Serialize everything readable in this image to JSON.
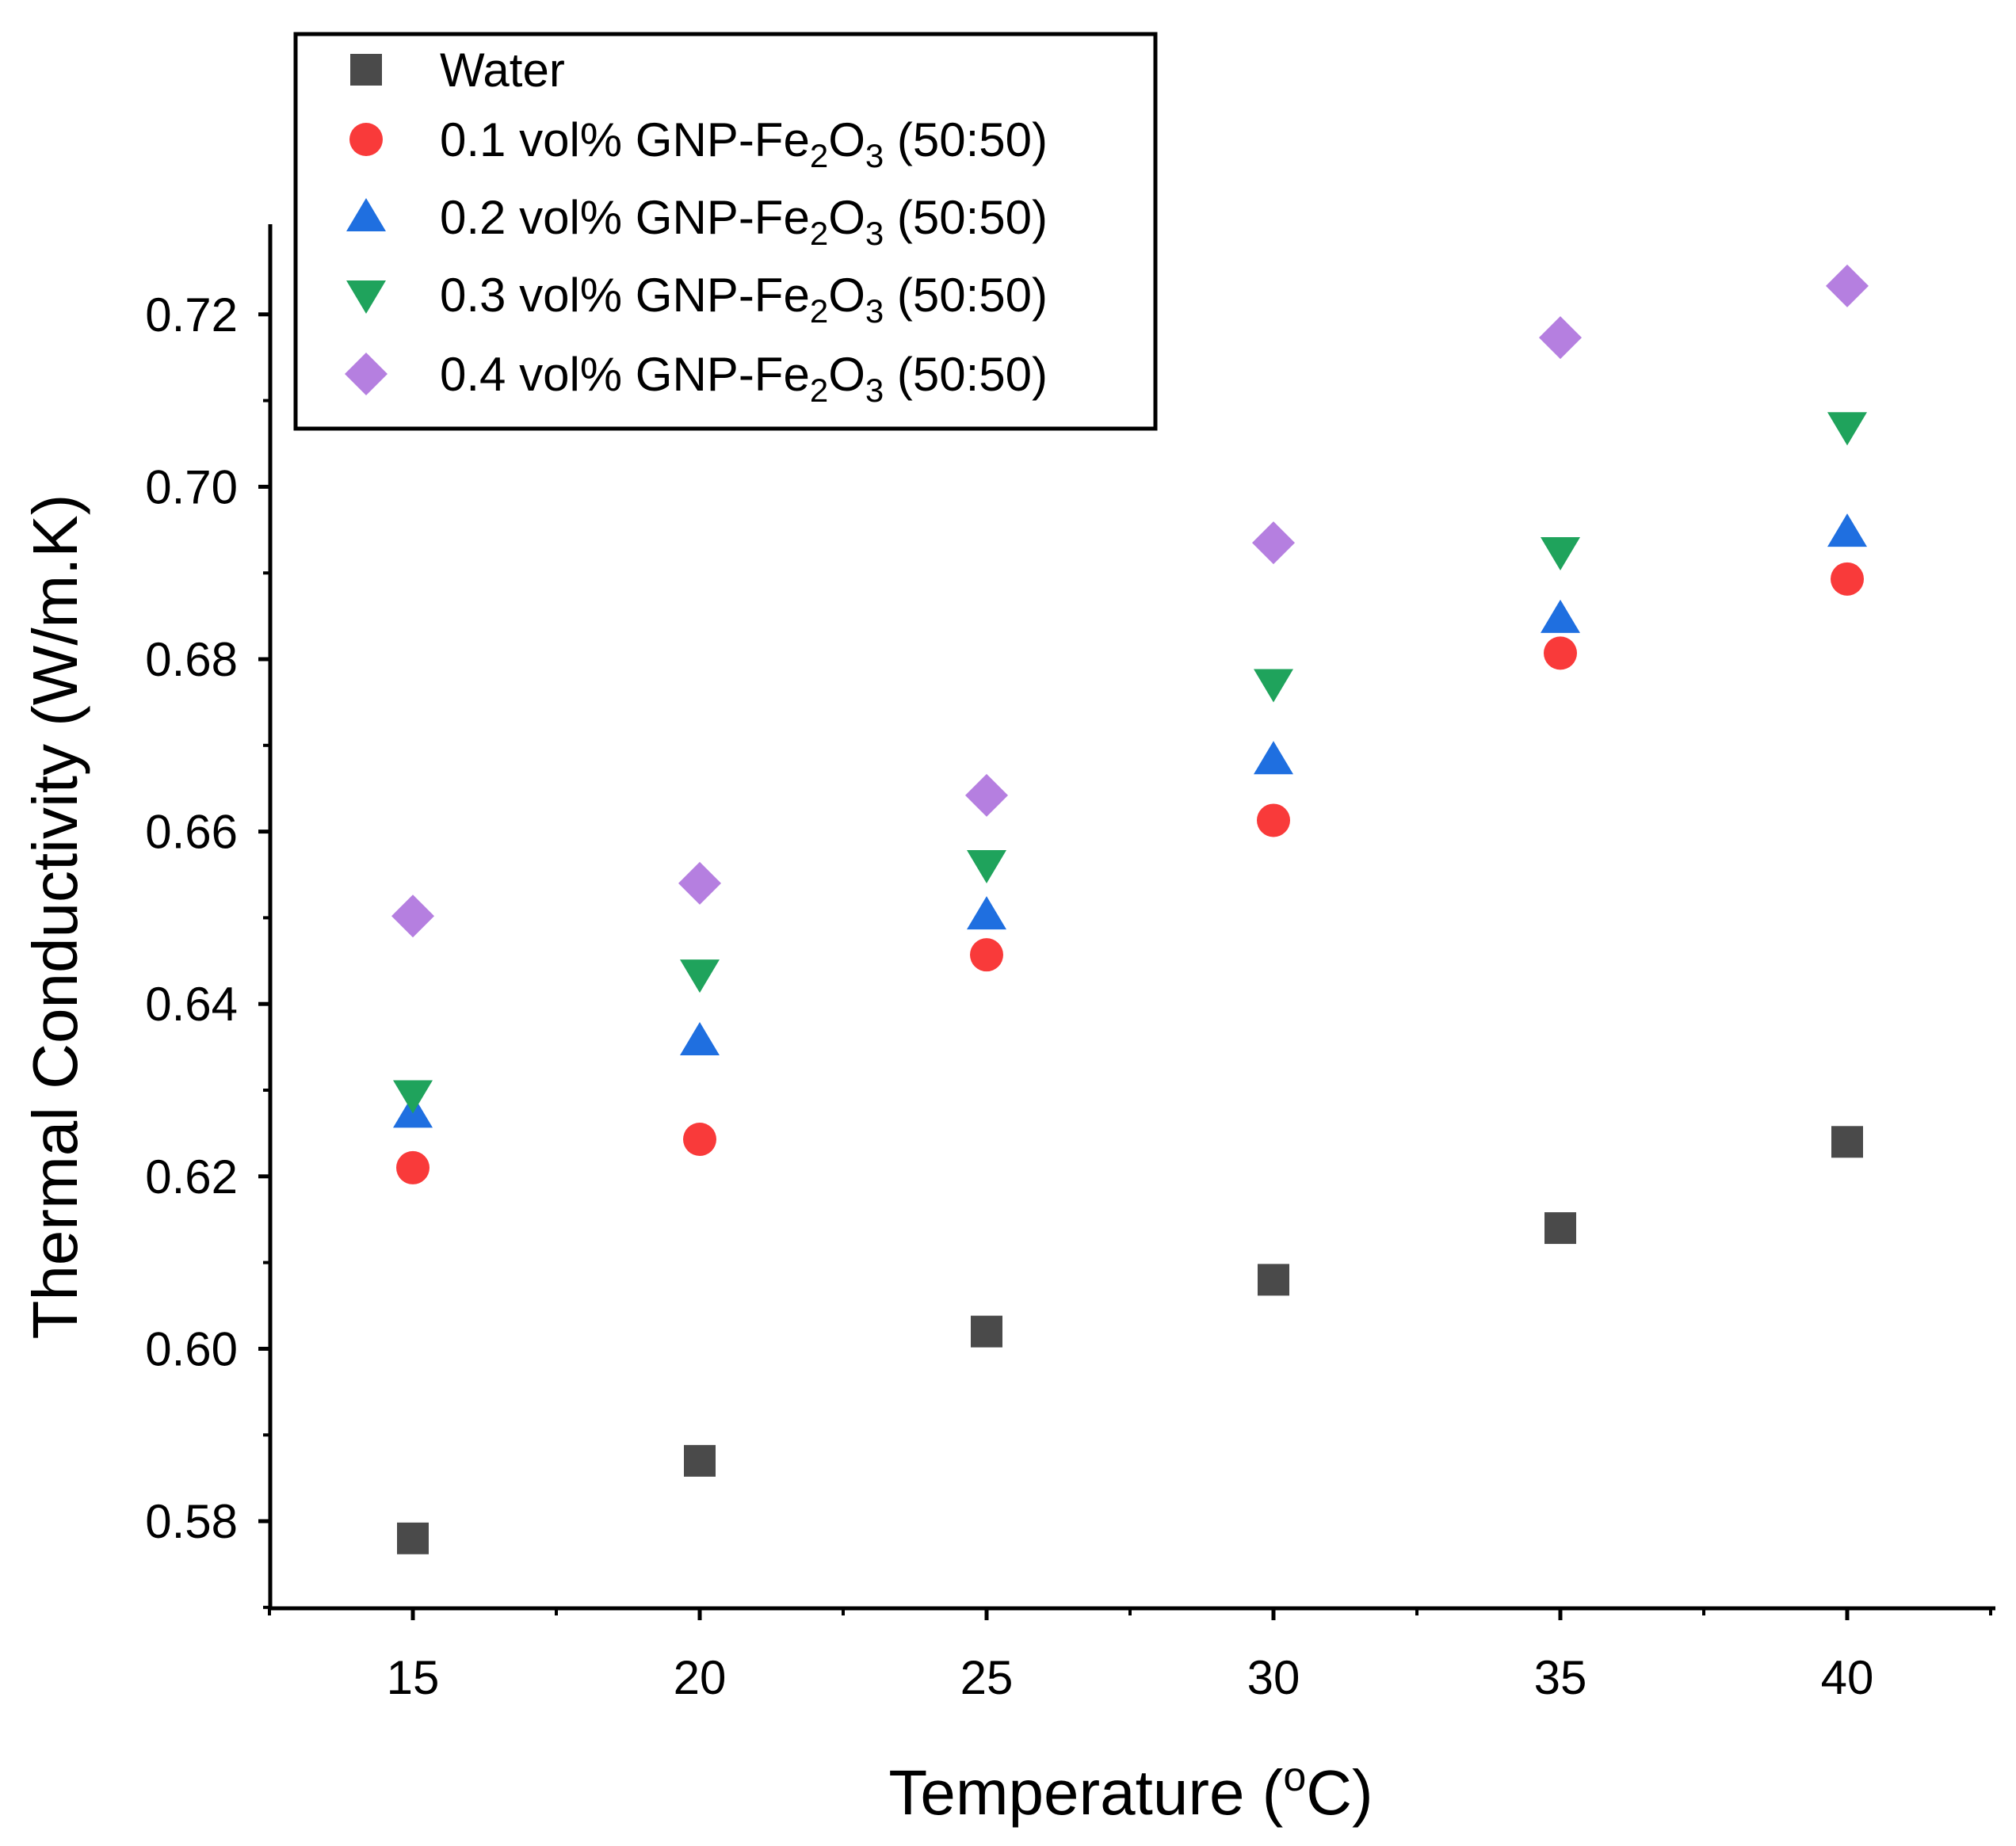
{
  "chart_data": {
    "type": "scatter",
    "title": "",
    "xlabel": "Temperature (",
    "xlabel_sup": "o",
    "xlabel_end": "C)",
    "ylabel": "Thermal Conductivity (W/m.K)",
    "xlim": [
      12.5,
      42.5
    ],
    "ylim": [
      0.57,
      0.73
    ],
    "x_ticks": [
      15,
      20,
      25,
      30,
      35,
      40
    ],
    "x_tick_labels": [
      "15",
      "20",
      "25",
      "30",
      "35",
      "40"
    ],
    "y_ticks": [
      0.58,
      0.6,
      0.62,
      0.64,
      0.66,
      0.68,
      0.7,
      0.72
    ],
    "y_tick_labels": [
      "0.58",
      "0.60",
      "0.62",
      "0.64",
      "0.66",
      "0.68",
      "0.70",
      "0.72"
    ],
    "grid": false,
    "legend_position": "top-left",
    "x": [
      15,
      20,
      25,
      30,
      35,
      40
    ],
    "series": [
      {
        "name": "Water",
        "label_parts": [
          "Water"
        ],
        "marker": "square",
        "color": "#4a4a4a",
        "values": [
          0.578,
          0.587,
          0.602,
          0.608,
          0.614,
          0.624
        ]
      },
      {
        "name": "0.1 vol% GNP-Fe2O3 (50:50)",
        "label_parts": [
          "0.1 vol% GNP-Fe",
          "2",
          "O",
          "3",
          " (50:50)"
        ],
        "marker": "circle",
        "color": "#f93a3a",
        "values": [
          0.621,
          0.6243,
          0.6457,
          0.6613,
          0.6807,
          0.6893
        ]
      },
      {
        "name": "0.2 vol% GNP-Fe2O3 (50:50)",
        "label_parts": [
          "0.2 vol% GNP-Fe",
          "2",
          "O",
          "3",
          " (50:50)"
        ],
        "marker": "triangle-up",
        "color": "#1f6fe0",
        "values": [
          0.6273,
          0.6357,
          0.6503,
          0.6683,
          0.6847,
          0.6947
        ]
      },
      {
        "name": "0.3 vol% GNP-Fe2O3 (50:50)",
        "label_parts": [
          "0.3 vol% GNP-Fe",
          "2",
          "O",
          "3",
          " (50:50)"
        ],
        "marker": "triangle-down",
        "color": "#1fa35c",
        "values": [
          0.6295,
          0.6435,
          0.6562,
          0.6772,
          0.6925,
          0.707
        ]
      },
      {
        "name": "0.4 vol% GNP-Fe2O3 (50:50)",
        "label_parts": [
          "0.4 vol% GNP-Fe",
          "2",
          "O",
          "3",
          " (50:50)"
        ],
        "marker": "diamond",
        "color": "#b57fe0",
        "values": [
          0.6502,
          0.654,
          0.6642,
          0.6935,
          0.7173,
          0.7233
        ]
      }
    ]
  }
}
